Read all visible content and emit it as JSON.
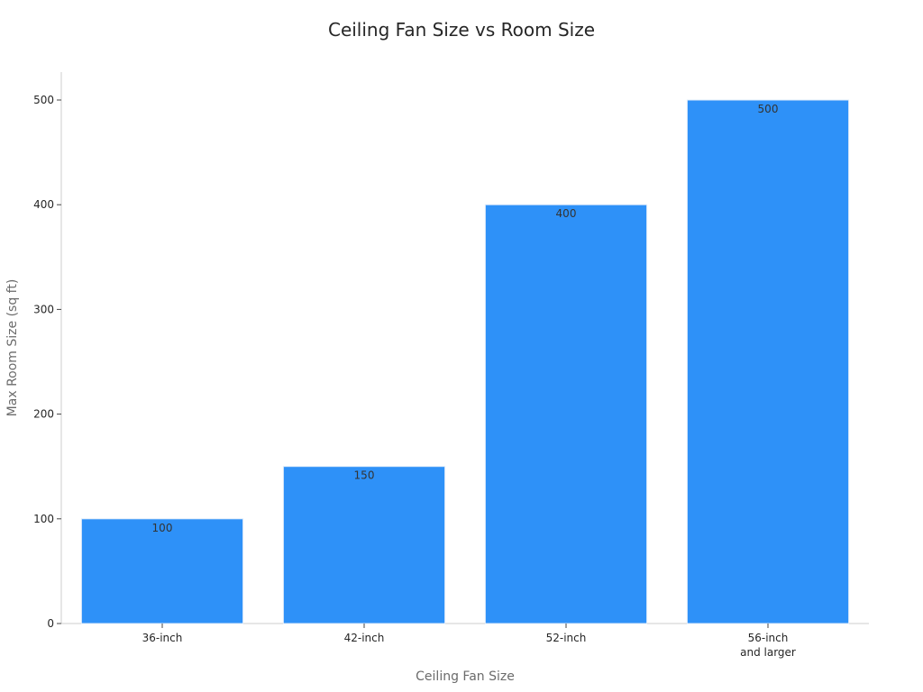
{
  "chart_data": {
    "type": "bar",
    "title": "Ceiling Fan Size vs Room Size",
    "xlabel": "Ceiling Fan Size",
    "ylabel": "Max Room Size (sq ft)",
    "categories": [
      [
        "36-inch"
      ],
      [
        "42-inch"
      ],
      [
        "52-inch"
      ],
      [
        "56-inch",
        "and larger"
      ]
    ],
    "values": [
      100,
      150,
      400,
      500
    ],
    "data_labels": [
      "100",
      "150",
      "400",
      "500"
    ],
    "ylim": [
      0,
      525
    ],
    "yticks": [
      0,
      100,
      200,
      300,
      400,
      500
    ],
    "grid": false,
    "legend": "none",
    "colors": {
      "bar": "#2e91f8",
      "bar_edge": "#e0ecfa"
    }
  }
}
